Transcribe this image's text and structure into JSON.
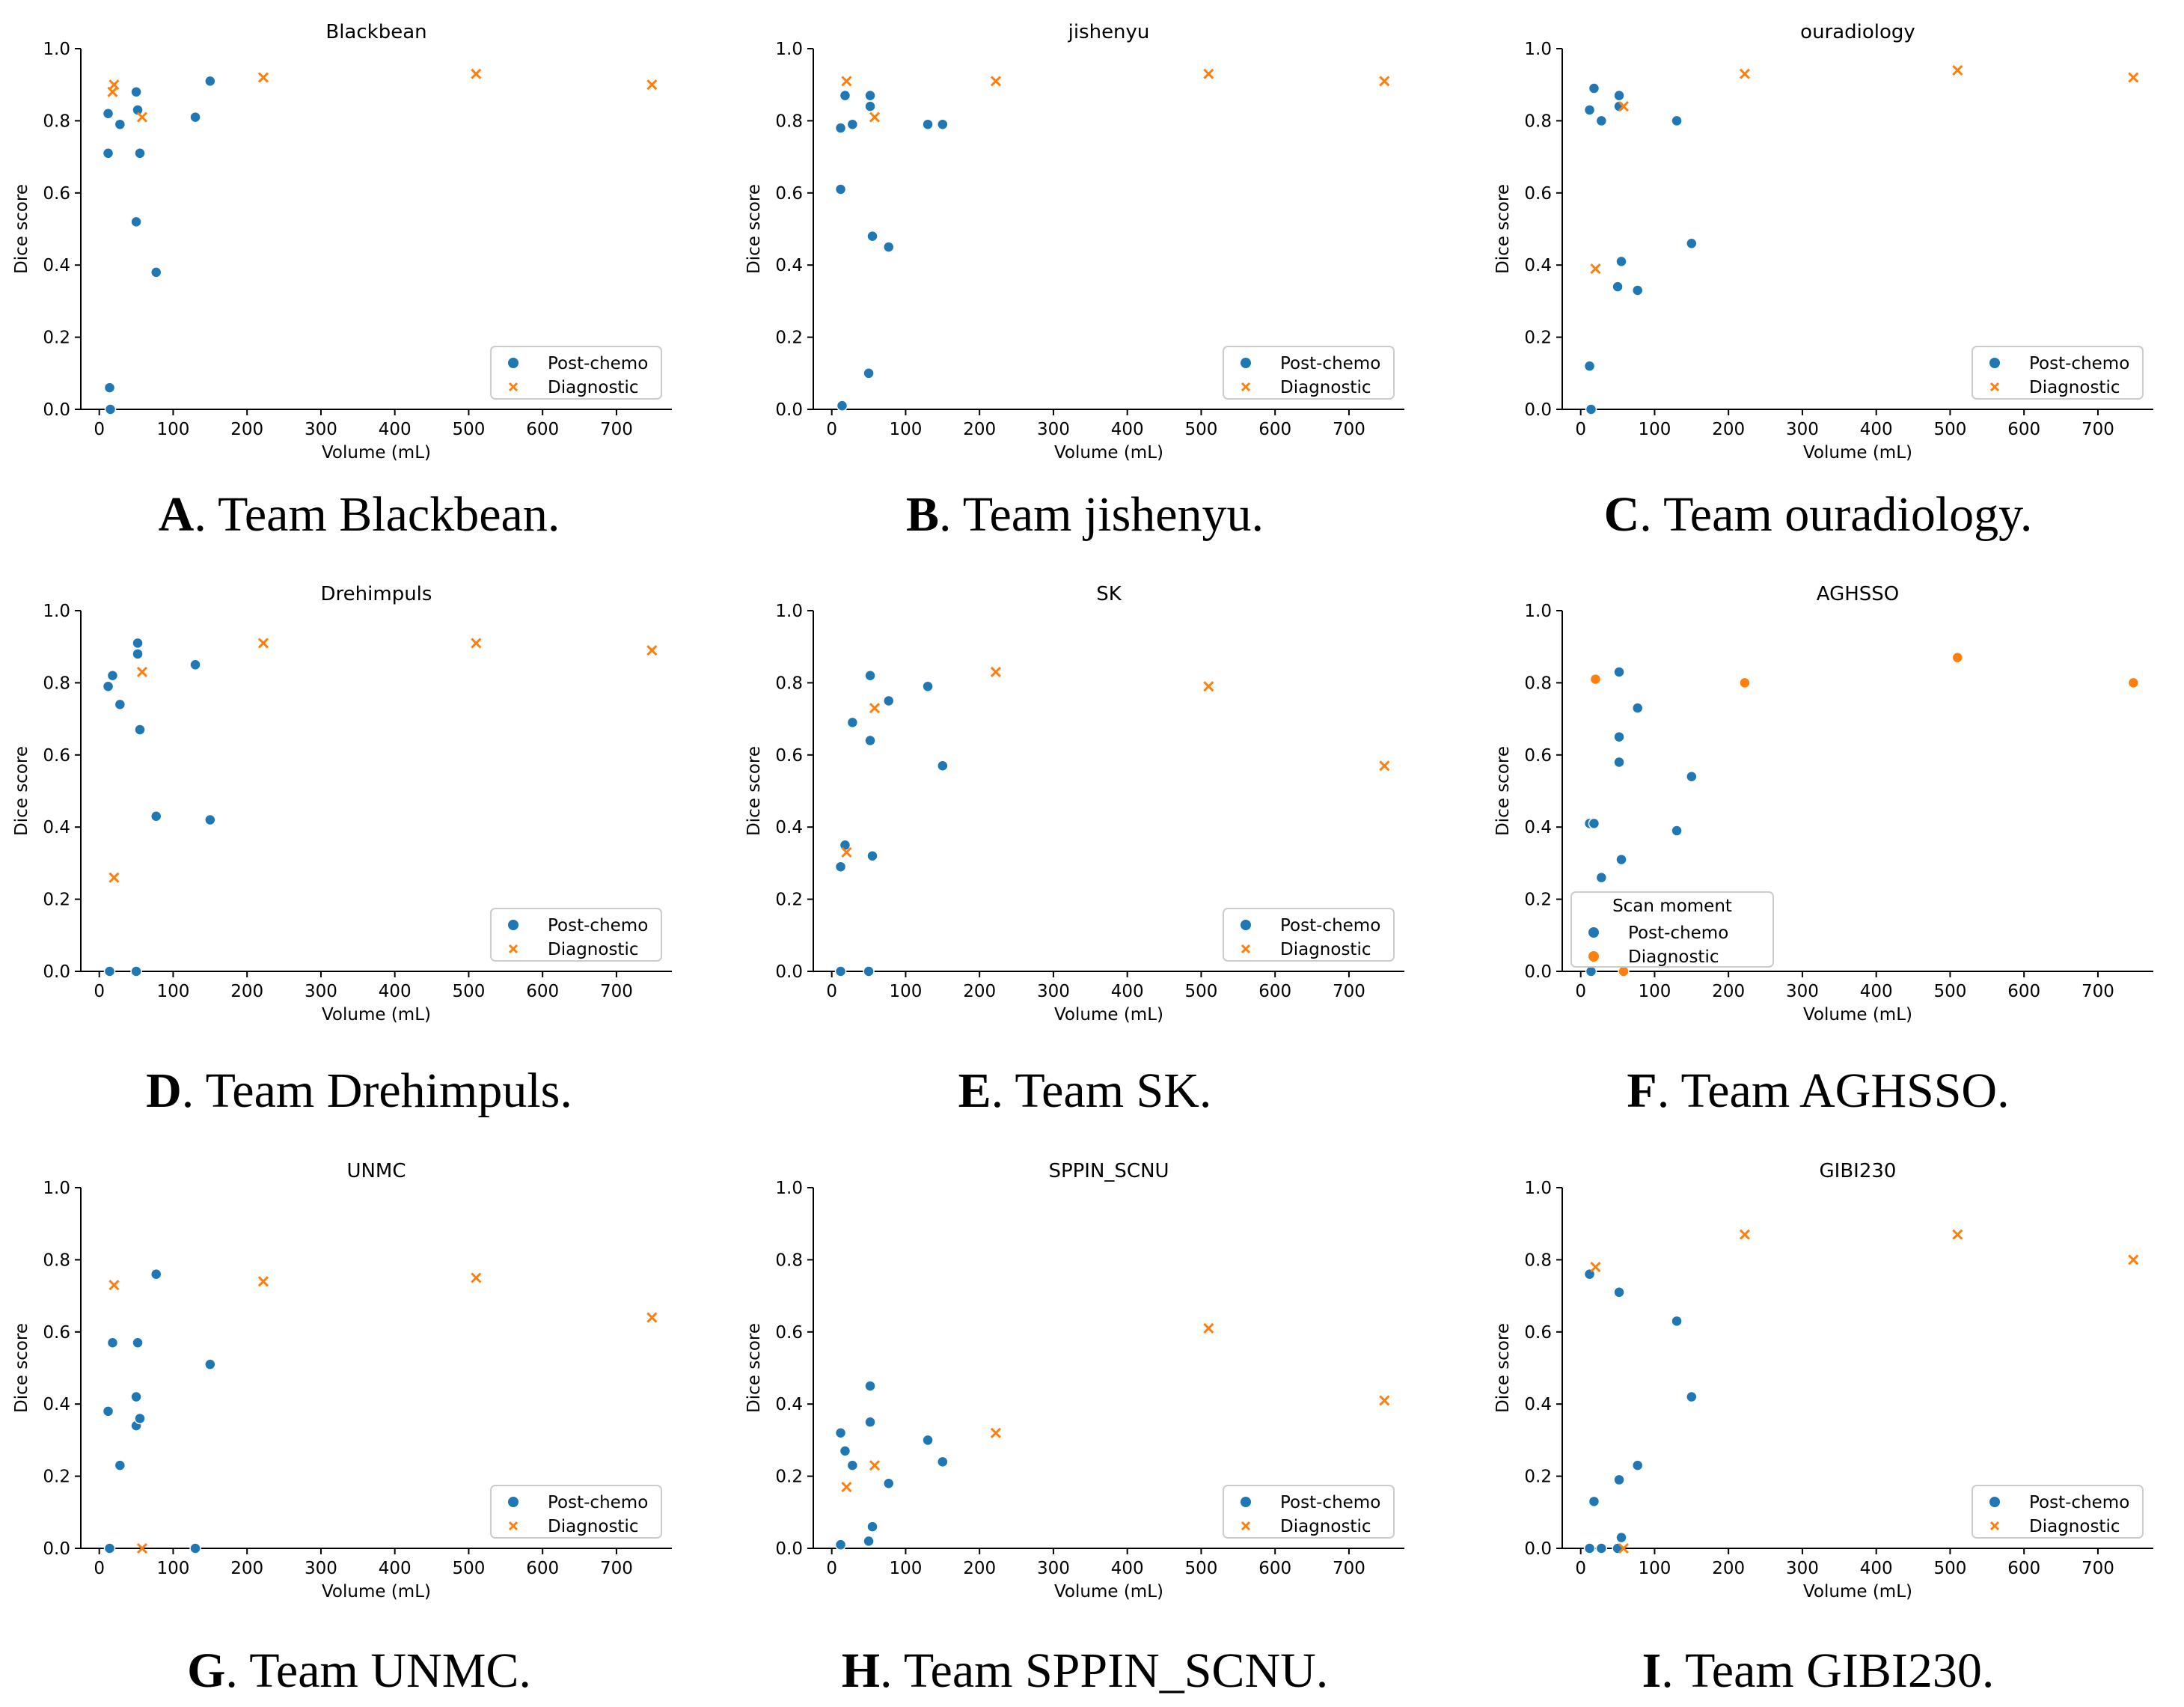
{
  "figure": {
    "colors": {
      "post": "#1f77b4",
      "diag": "#ff7f0e",
      "axis": "#000000",
      "legend_border": "#cccccc"
    },
    "axes": {
      "xlabel": "Volume (mL)",
      "ylabel": "Dice score",
      "xlim": [
        -25,
        775
      ],
      "ylim": [
        0,
        1.0
      ],
      "xticks": [
        0,
        100,
        200,
        300,
        400,
        500,
        600,
        700
      ],
      "yticks": [
        0.0,
        0.2,
        0.4,
        0.6,
        0.8,
        1.0
      ],
      "ytick_labels": [
        "0.0",
        "0.2",
        "0.4",
        "0.6",
        "0.8",
        "1.0"
      ]
    }
  },
  "chart_data": [
    {
      "type": "scatter",
      "title": "Blackbean",
      "caption": {
        "letter": "A",
        "text": ". Team Blackbean."
      },
      "legend": {
        "title": "",
        "entries": [
          "Post-chemo",
          "Diagnostic"
        ]
      },
      "diag_marker": "x",
      "series": [
        {
          "name": "Post-chemo",
          "x": [
            12,
            12,
            14,
            15,
            28,
            50,
            50,
            52,
            55,
            77,
            130,
            150
          ],
          "y": [
            0.82,
            0.71,
            0.06,
            0.0,
            0.79,
            0.52,
            0.88,
            0.83,
            0.71,
            0.38,
            0.81,
            0.91
          ]
        },
        {
          "name": "Diagnostic",
          "x": [
            18,
            20,
            58,
            222,
            510,
            748
          ],
          "y": [
            0.88,
            0.9,
            0.81,
            0.92,
            0.93,
            0.9
          ]
        }
      ]
    },
    {
      "type": "scatter",
      "title": "jishenyu",
      "caption": {
        "letter": "B",
        "text": ". Team jishenyu."
      },
      "legend": {
        "title": "",
        "entries": [
          "Post-chemo",
          "Diagnostic"
        ]
      },
      "diag_marker": "x",
      "series": [
        {
          "name": "Post-chemo",
          "x": [
            12,
            12,
            14,
            18,
            28,
            50,
            52,
            55,
            77,
            130,
            150,
            52
          ],
          "y": [
            0.78,
            0.61,
            0.01,
            0.87,
            0.79,
            0.1,
            0.84,
            0.48,
            0.45,
            0.79,
            0.79,
            0.87
          ]
        },
        {
          "name": "Diagnostic",
          "x": [
            20,
            58,
            222,
            510,
            748
          ],
          "y": [
            0.91,
            0.81,
            0.91,
            0.93,
            0.91
          ]
        }
      ]
    },
    {
      "type": "scatter",
      "title": "ouradiology",
      "caption": {
        "letter": "C",
        "text": ". Team ouradiology."
      },
      "legend": {
        "title": "",
        "entries": [
          "Post-chemo",
          "Diagnostic"
        ]
      },
      "diag_marker": "x",
      "series": [
        {
          "name": "Post-chemo",
          "x": [
            12,
            12,
            14,
            18,
            28,
            50,
            52,
            55,
            77,
            130,
            150,
            52
          ],
          "y": [
            0.83,
            0.12,
            0.0,
            0.89,
            0.8,
            0.34,
            0.87,
            0.41,
            0.33,
            0.8,
            0.46,
            0.84
          ]
        },
        {
          "name": "Diagnostic",
          "x": [
            20,
            58,
            222,
            510,
            748
          ],
          "y": [
            0.39,
            0.84,
            0.93,
            0.94,
            0.92
          ]
        }
      ]
    },
    {
      "type": "scatter",
      "title": "Drehimpuls",
      "caption": {
        "letter": "D",
        "text": ". Team Drehimpuls."
      },
      "legend": {
        "title": "",
        "entries": [
          "Post-chemo",
          "Diagnostic"
        ]
      },
      "diag_marker": "x",
      "series": [
        {
          "name": "Post-chemo",
          "x": [
            12,
            14,
            18,
            28,
            50,
            52,
            52,
            55,
            77,
            130,
            150
          ],
          "y": [
            0.79,
            0.0,
            0.82,
            0.74,
            0.0,
            0.88,
            0.91,
            0.67,
            0.43,
            0.85,
            0.42
          ]
        },
        {
          "name": "Diagnostic",
          "x": [
            20,
            58,
            222,
            510,
            748
          ],
          "y": [
            0.26,
            0.83,
            0.91,
            0.91,
            0.89
          ]
        }
      ]
    },
    {
      "type": "scatter",
      "title": "SK",
      "caption": {
        "letter": "E",
        "text": ". Team SK."
      },
      "legend": {
        "title": "",
        "entries": [
          "Post-chemo",
          "Diagnostic"
        ]
      },
      "diag_marker": "x",
      "series": [
        {
          "name": "Post-chemo",
          "x": [
            12,
            12,
            18,
            28,
            50,
            52,
            52,
            55,
            77,
            130,
            150
          ],
          "y": [
            0.29,
            0.0,
            0.35,
            0.69,
            0.0,
            0.82,
            0.64,
            0.32,
            0.75,
            0.79,
            0.57
          ]
        },
        {
          "name": "Diagnostic",
          "x": [
            20,
            58,
            222,
            510,
            748
          ],
          "y": [
            0.33,
            0.73,
            0.83,
            0.79,
            0.57
          ]
        }
      ]
    },
    {
      "type": "scatter",
      "title": "AGHSSO",
      "caption": {
        "letter": "F",
        "text": ". Team AGHSSO."
      },
      "legend": {
        "title": "Scan moment",
        "entries": [
          "Post-chemo",
          "Diagnostic"
        ]
      },
      "diag_marker": "o",
      "series": [
        {
          "name": "Post-chemo",
          "x": [
            12,
            14,
            18,
            28,
            52,
            52,
            52,
            55,
            77,
            130,
            150
          ],
          "y": [
            0.41,
            0.0,
            0.41,
            0.26,
            0.83,
            0.65,
            0.58,
            0.31,
            0.73,
            0.39,
            0.54
          ]
        },
        {
          "name": "Diagnostic",
          "x": [
            20,
            58,
            222,
            510,
            748
          ],
          "y": [
            0.81,
            0.0,
            0.8,
            0.87,
            0.8
          ]
        }
      ]
    },
    {
      "type": "scatter",
      "title": "UNMC",
      "caption": {
        "letter": "G",
        "text": ". Team UNMC."
      },
      "legend": {
        "title": "",
        "entries": [
          "Post-chemo",
          "Diagnostic"
        ]
      },
      "diag_marker": "x",
      "series": [
        {
          "name": "Post-chemo",
          "x": [
            12,
            14,
            18,
            28,
            50,
            50,
            52,
            55,
            77,
            130,
            150
          ],
          "y": [
            0.38,
            0.0,
            0.57,
            0.23,
            0.42,
            0.34,
            0.57,
            0.36,
            0.76,
            0.0,
            0.51
          ]
        },
        {
          "name": "Diagnostic",
          "x": [
            20,
            58,
            222,
            510,
            748
          ],
          "y": [
            0.73,
            0.0,
            0.74,
            0.75,
            0.64
          ]
        }
      ]
    },
    {
      "type": "scatter",
      "title": "SPPIN_SCNU",
      "caption": {
        "letter": "H",
        "text": ". Team SPPIN_SCNU."
      },
      "legend": {
        "title": "",
        "entries": [
          "Post-chemo",
          "Diagnostic"
        ]
      },
      "diag_marker": "x",
      "series": [
        {
          "name": "Post-chemo",
          "x": [
            12,
            12,
            18,
            28,
            50,
            52,
            52,
            55,
            77,
            130,
            150
          ],
          "y": [
            0.32,
            0.01,
            0.27,
            0.23,
            0.02,
            0.45,
            0.35,
            0.06,
            0.18,
            0.3,
            0.24
          ]
        },
        {
          "name": "Diagnostic",
          "x": [
            20,
            58,
            222,
            510,
            748
          ],
          "y": [
            0.17,
            0.23,
            0.32,
            0.61,
            0.41
          ]
        }
      ]
    },
    {
      "type": "scatter",
      "title": "GIBI230",
      "caption": {
        "letter": "I",
        "text": ". Team GIBI230."
      },
      "legend": {
        "title": "",
        "entries": [
          "Post-chemo",
          "Diagnostic"
        ]
      },
      "diag_marker": "x",
      "series": [
        {
          "name": "Post-chemo",
          "x": [
            12,
            12,
            18,
            28,
            50,
            52,
            52,
            55,
            77,
            130,
            150
          ],
          "y": [
            0.76,
            0.0,
            0.13,
            0.0,
            0.0,
            0.19,
            0.71,
            0.03,
            0.23,
            0.63,
            0.42
          ]
        },
        {
          "name": "Diagnostic",
          "x": [
            20,
            58,
            222,
            510,
            748
          ],
          "y": [
            0.78,
            0.0,
            0.87,
            0.87,
            0.8
          ]
        }
      ]
    }
  ]
}
